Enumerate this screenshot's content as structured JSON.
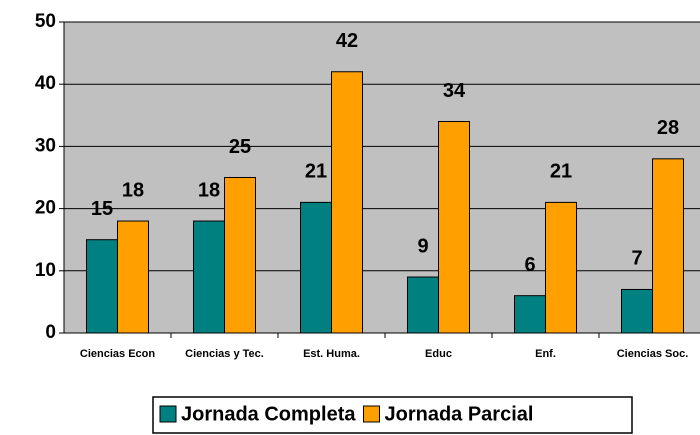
{
  "chart_data": {
    "type": "bar",
    "categories": [
      "Ciencias Econ",
      "Ciencias y Tec.",
      "Est. Huma.",
      "Educ",
      "Enf.",
      "Ciencias Soc."
    ],
    "series": [
      {
        "name": "Jornada Completa",
        "color": "#008080",
        "values": [
          15,
          18,
          21,
          9,
          6,
          7
        ]
      },
      {
        "name": "Jornada Parcial",
        "color": "#ffa000",
        "values": [
          18,
          25,
          42,
          34,
          21,
          28
        ]
      }
    ],
    "ylim": [
      0,
      50
    ],
    "yticks": [
      0,
      10,
      20,
      30,
      40,
      50
    ],
    "grid": true,
    "legend": "bottom"
  }
}
